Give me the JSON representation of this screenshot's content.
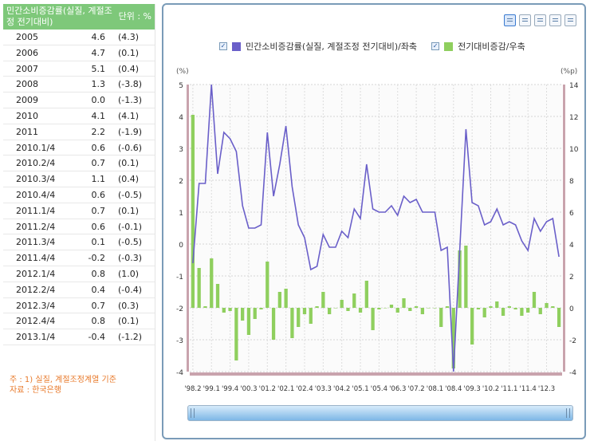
{
  "table": {
    "title": "민간소비증감률(실질, 계절조정 전기대비)",
    "unit": "단위 : %",
    "rows": [
      {
        "period": "2005",
        "value": "4.6",
        "change": "(4.3)"
      },
      {
        "period": "2006",
        "value": "4.7",
        "change": "(0.1)"
      },
      {
        "period": "2007",
        "value": "5.1",
        "change": "(0.4)"
      },
      {
        "period": "2008",
        "value": "1.3",
        "change": "(-3.8)"
      },
      {
        "period": "2009",
        "value": "0.0",
        "change": "(-1.3)"
      },
      {
        "period": "2010",
        "value": "4.1",
        "change": "(4.1)"
      },
      {
        "period": "2011",
        "value": "2.2",
        "change": "(-1.9)"
      },
      {
        "period": "2010.1/4",
        "value": "0.6",
        "change": "(-0.6)"
      },
      {
        "period": "2010.2/4",
        "value": "0.7",
        "change": "(0.1)"
      },
      {
        "period": "2010.3/4",
        "value": "1.1",
        "change": "(0.4)"
      },
      {
        "period": "2010.4/4",
        "value": "0.6",
        "change": "(-0.5)"
      },
      {
        "period": "2011.1/4",
        "value": "0.7",
        "change": "(0.1)"
      },
      {
        "period": "2011.2/4",
        "value": "0.6",
        "change": "(-0.1)"
      },
      {
        "period": "2011.3/4",
        "value": "0.1",
        "change": "(-0.5)"
      },
      {
        "period": "2011.4/4",
        "value": "-0.2",
        "change": "(-0.3)"
      },
      {
        "period": "2012.1/4",
        "value": "0.8",
        "change": "(1.0)"
      },
      {
        "period": "2012.2/4",
        "value": "0.4",
        "change": "(-0.4)"
      },
      {
        "period": "2012.3/4",
        "value": "0.7",
        "change": "(0.3)"
      },
      {
        "period": "2012.4/4",
        "value": "0.8",
        "change": "(0.1)"
      },
      {
        "period": "2013.1/4",
        "value": "-0.4",
        "change": "(-1.2)"
      }
    ]
  },
  "notes": {
    "note": "주 : 1) 실질, 계절조정계열 기준",
    "source": "자료 : 한국은행"
  },
  "legend": {
    "line_label": "민간소비증감률(실질, 계절조정 전기대비)/좌축",
    "bar_label": "전기대비증감/우축"
  },
  "colors": {
    "line": "#6a5fc9",
    "bar": "#8fcf5e",
    "header": "#7ec87a",
    "note": "#e8792a",
    "frame": "#7a9bb8"
  },
  "toolbar_icons": [
    "list-icon",
    "copy-icon",
    "paste-icon",
    "save-icon",
    "print-icon"
  ],
  "chart_data": {
    "type": "line+bar",
    "y_left_unit": "(%)",
    "y_right_unit": "(%p)",
    "y_left_range": [
      -4,
      5
    ],
    "y_right_range": [
      -4,
      14
    ],
    "y_left_ticks": [
      "5",
      "4",
      "3",
      "2",
      "1",
      "0",
      "-1",
      "-2",
      "-3",
      "-4"
    ],
    "y_right_ticks": [
      "14",
      "12",
      "10",
      "8",
      "6",
      "4",
      "2",
      "0",
      "-2",
      "-4"
    ],
    "x_tick_labels": [
      "'98.2",
      "'99.1",
      "'99.4",
      "'00.3",
      "'01.2",
      "'02.1",
      "'02.4",
      "'03.3",
      "'04.2",
      "'05.1",
      "'05.4",
      "'06.3",
      "'07.2",
      "'08.1",
      "'08.4",
      "'09.3",
      "'10.2",
      "'11.1",
      "'11.4",
      "'12.3"
    ],
    "series": [
      {
        "name": "민간소비증감률(실질, 계절조정 전기대비)/좌축",
        "axis": "left",
        "type": "line",
        "values": [
          -0.6,
          1.9,
          1.9,
          5.0,
          2.2,
          3.5,
          3.3,
          2.9,
          1.2,
          0.5,
          0.5,
          0.6,
          3.5,
          1.5,
          2.5,
          3.7,
          1.8,
          0.6,
          0.2,
          -0.8,
          -0.7,
          0.3,
          -0.1,
          -0.1,
          0.4,
          0.2,
          1.1,
          0.8,
          2.5,
          1.1,
          1.0,
          1.0,
          1.2,
          0.9,
          1.5,
          1.3,
          1.4,
          1.0,
          1.0,
          1.0,
          -0.2,
          -0.1,
          -4.0,
          -0.2,
          3.6,
          1.3,
          1.2,
          0.6,
          0.7,
          1.1,
          0.6,
          0.7,
          0.6,
          0.1,
          -0.2,
          0.8,
          0.4,
          0.7,
          0.8,
          -0.4
        ]
      },
      {
        "name": "전기대비증감/우축",
        "axis": "right",
        "type": "bar",
        "values": [
          12.1,
          2.5,
          0.1,
          3.1,
          1.5,
          -0.3,
          -0.2,
          -3.3,
          -0.8,
          -1.7,
          -0.7,
          -0.1,
          2.9,
          -2.0,
          1.0,
          1.2,
          -1.9,
          -1.2,
          -0.4,
          -1.0,
          0.1,
          1.0,
          -0.4,
          0.0,
          0.5,
          -0.2,
          0.9,
          -0.3,
          1.7,
          -1.4,
          -0.1,
          0.0,
          0.2,
          -0.3,
          0.6,
          -0.2,
          0.1,
          -0.4,
          0.0,
          0.0,
          -1.2,
          0.1,
          -3.8,
          3.6,
          3.9,
          -2.3,
          -0.1,
          -0.6,
          0.1,
          0.4,
          -0.5,
          0.1,
          -0.1,
          -0.5,
          -0.3,
          1.0,
          -0.4,
          0.3,
          0.1,
          -1.2
        ]
      }
    ]
  }
}
